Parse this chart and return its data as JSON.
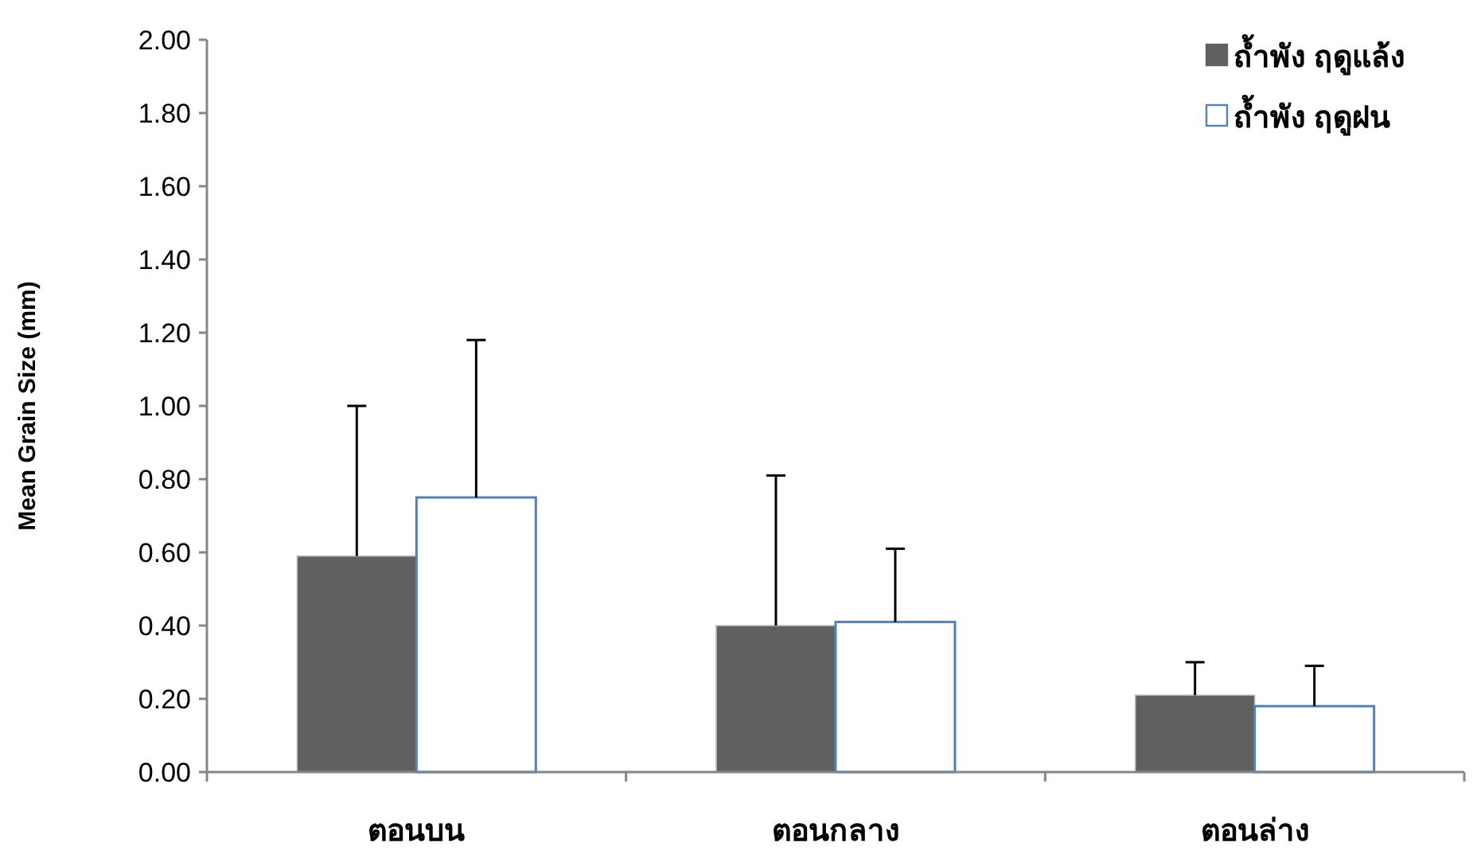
{
  "chart_data": {
    "type": "bar",
    "ylabel": "Mean Grain Size (mm)",
    "categories": [
      "ตอนบน",
      "ตอนกลาง",
      "ตอนล่าง"
    ],
    "series": [
      {
        "name": "ถ้ำพัง ฤดูแล้ง",
        "color": "#606060",
        "values": [
          0.59,
          0.4,
          0.21
        ],
        "errors": [
          0.41,
          0.41,
          0.09
        ]
      },
      {
        "name": "ถ้ำพัง ฤดูฝน",
        "color": "#ffffff",
        "values": [
          0.75,
          0.41,
          0.18
        ],
        "errors": [
          0.43,
          0.2,
          0.11
        ]
      }
    ],
    "ylim": [
      0,
      2
    ],
    "yticks": [
      {
        "value": 0,
        "label": "0.00"
      },
      {
        "value": 0.2,
        "label": "0.20"
      },
      {
        "value": 0.4,
        "label": "0.40"
      },
      {
        "value": 0.6,
        "label": "0.60"
      },
      {
        "value": 0.8,
        "label": "0.80"
      },
      {
        "value": 1.0,
        "label": "1.00"
      },
      {
        "value": 1.2,
        "label": "1.20"
      },
      {
        "value": 1.4,
        "label": "1.40"
      },
      {
        "value": 1.6,
        "label": "1.60"
      },
      {
        "value": 1.8,
        "label": "1.80"
      },
      {
        "value": 2.0,
        "label": "2.00"
      }
    ],
    "grid": false,
    "legend": "top right"
  }
}
